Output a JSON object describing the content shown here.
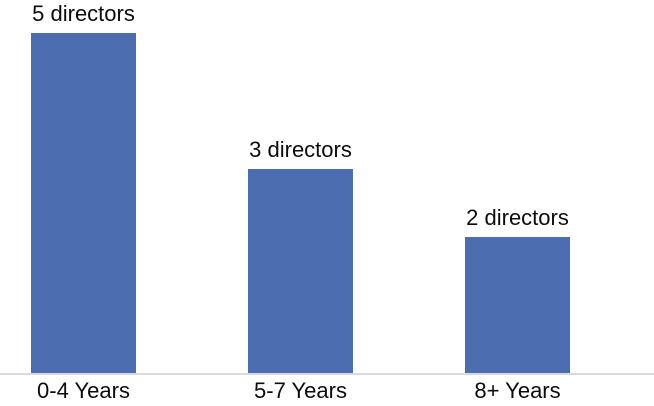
{
  "chart_data": {
    "type": "bar",
    "categories": [
      "0-4 Years",
      "5-7 Years",
      "8+ Years"
    ],
    "values": [
      5,
      3,
      2
    ],
    "data_labels": [
      "5 directors",
      "3 directors",
      "2 directors"
    ],
    "unit": "directors",
    "title": "",
    "xlabel": "",
    "ylabel": "",
    "ylim": [
      0,
      5
    ],
    "grid": false,
    "legend_position": "none",
    "bar_color": "#4c6eb1",
    "axis_line_color": "#d9d9d9",
    "label_color": "#0c0c0c"
  }
}
